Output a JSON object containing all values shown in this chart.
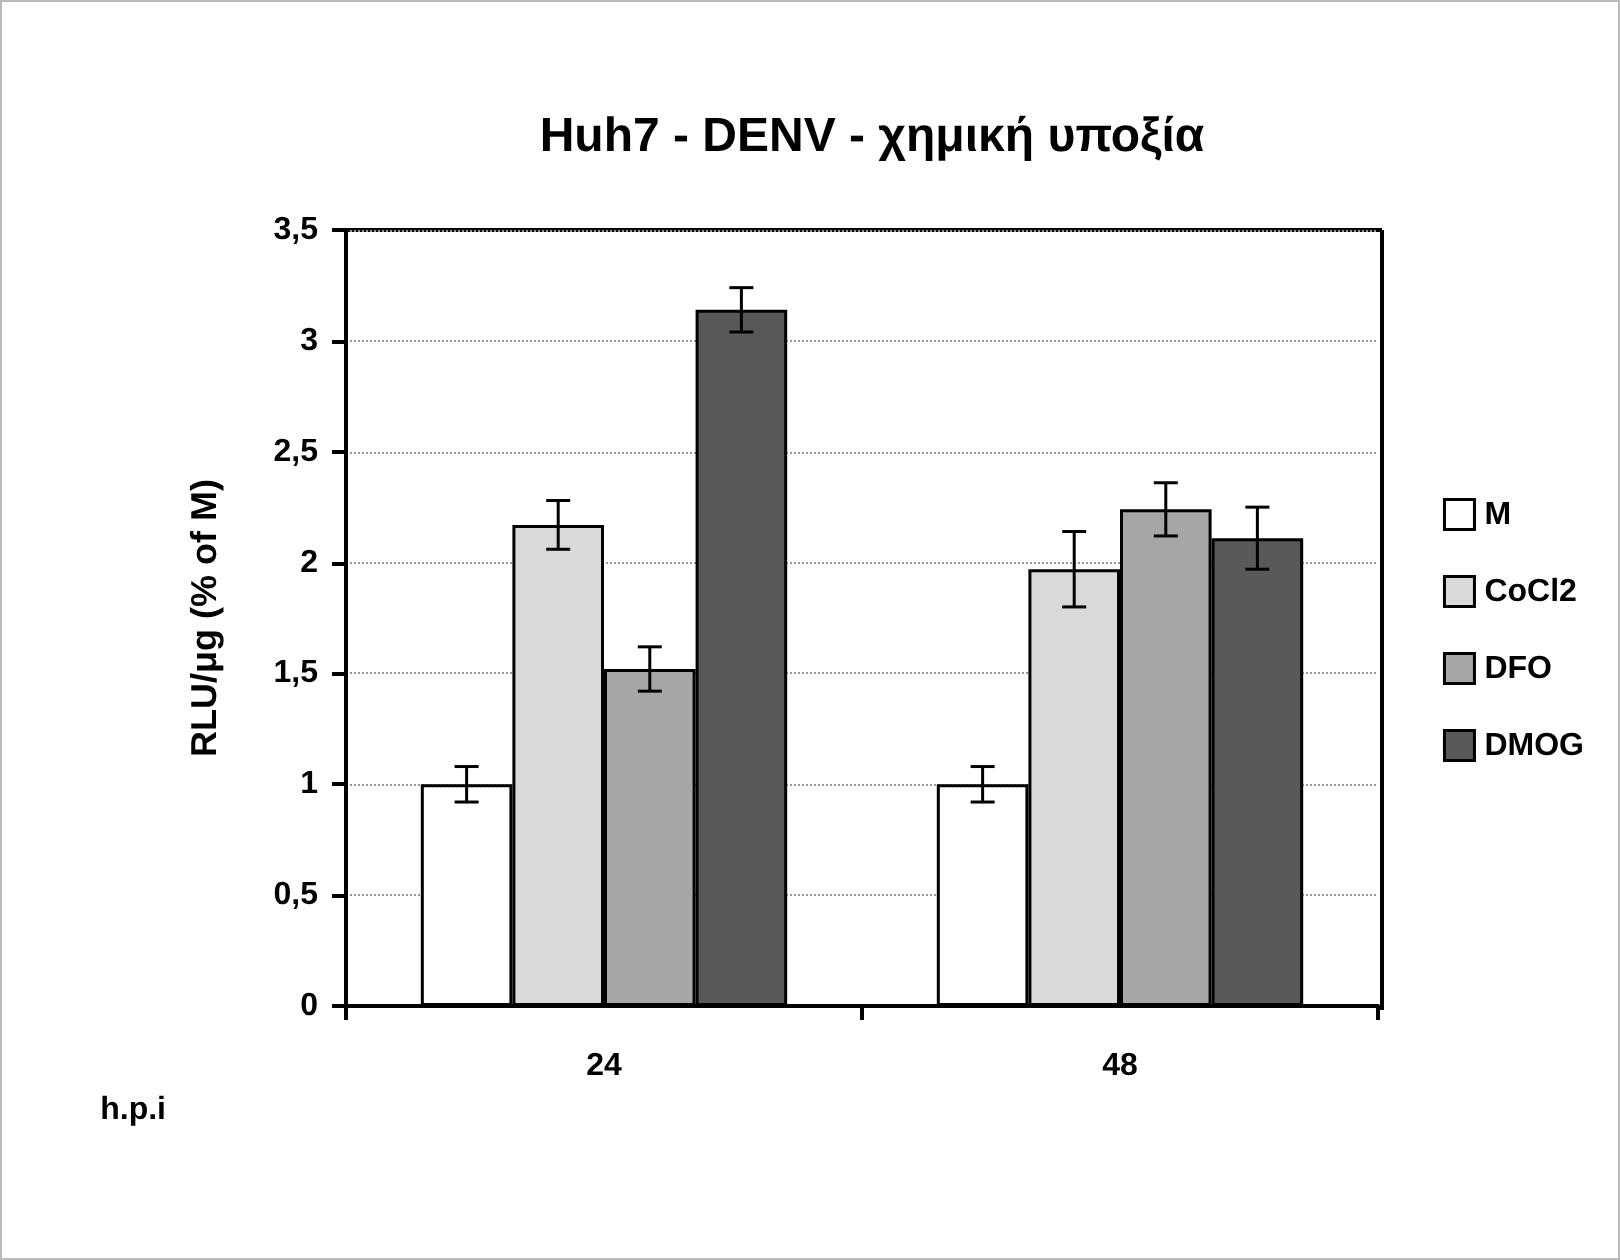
{
  "chart_data": {
    "type": "bar",
    "title": "Huh7 - DENV - χημική υποξία",
    "xlabel": "h.p.i",
    "ylabel": "RLU/μg (% of M)",
    "categories": [
      "24",
      "48"
    ],
    "series": [
      {
        "name": "M",
        "color": "#ffffff",
        "values": [
          1.0,
          1.0
        ],
        "errors": [
          0.08,
          0.08
        ]
      },
      {
        "name": "CoCl2",
        "color": "#d9d9d9",
        "values": [
          2.17,
          1.97
        ],
        "errors": [
          0.11,
          0.17
        ]
      },
      {
        "name": "DFO",
        "color": "#a6a6a6",
        "values": [
          1.52,
          2.24
        ],
        "errors": [
          0.1,
          0.12
        ]
      },
      {
        "name": "DMOG",
        "color": "#595959",
        "values": [
          3.14,
          2.11
        ],
        "errors": [
          0.1,
          0.14
        ]
      }
    ],
    "ylim": [
      0,
      3.5
    ],
    "yticks": [
      0,
      {
        "value": 0.5,
        "label": "0,5"
      },
      1,
      {
        "value": 1.5,
        "label": "1,5"
      },
      2,
      {
        "value": 2.5,
        "label": "2,5"
      },
      3,
      {
        "value": 3.5,
        "label": "3,5"
      }
    ],
    "grid": "y",
    "legend": "right"
  }
}
